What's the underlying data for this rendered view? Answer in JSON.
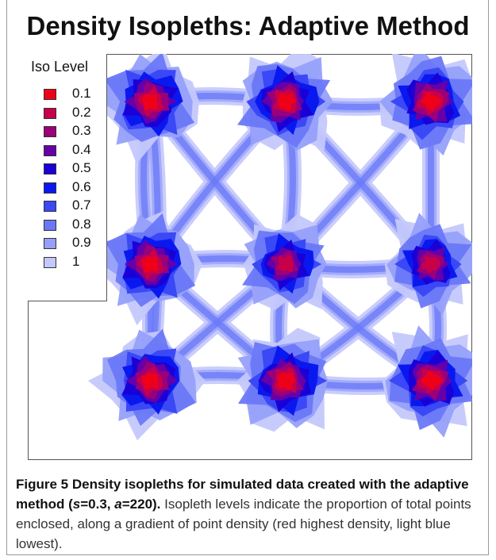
{
  "chart_data": {
    "type": "heatmap",
    "title": "Density Isopleths: Adaptive Method",
    "legend": {
      "title": "Iso Level",
      "placement": "top-left",
      "levels": [
        {
          "label": "0.1",
          "color": "#f00018"
        },
        {
          "label": "0.2",
          "color": "#c8004a"
        },
        {
          "label": "0.3",
          "color": "#99007a"
        },
        {
          "label": "0.4",
          "color": "#6600a8"
        },
        {
          "label": "0.5",
          "color": "#1a00d6"
        },
        {
          "label": "0.6",
          "color": "#0a18f0"
        },
        {
          "label": "0.7",
          "color": "#3a48f6"
        },
        {
          "label": "0.8",
          "color": "#6a78f8"
        },
        {
          "label": "0.9",
          "color": "#96a0fa"
        },
        {
          "label": "1",
          "color": "#c4c8fc"
        }
      ]
    },
    "axes_visible": false,
    "grid": false,
    "hotspots": [
      {
        "x": 1,
        "y": 3,
        "peak_level": "0.1"
      },
      {
        "x": 2,
        "y": 3,
        "peak_level": "0.1"
      },
      {
        "x": 3,
        "y": 3,
        "peak_level": "0.1"
      },
      {
        "x": 1,
        "y": 2,
        "peak_level": "0.1"
      },
      {
        "x": 2,
        "y": 2,
        "peak_level": "0.2"
      },
      {
        "x": 3,
        "y": 2,
        "peak_level": "0.2"
      },
      {
        "x": 1,
        "y": 1,
        "peak_level": "0.1"
      },
      {
        "x": 2,
        "y": 1,
        "peak_level": "0.1"
      },
      {
        "x": 3,
        "y": 1,
        "peak_level": "0.1"
      }
    ]
  },
  "caption": {
    "label": "Figure 5",
    "bold_text": "Density isopleths for simulated data created with the adaptive method (",
    "s_var": "s",
    "s_val": "=0.3, ",
    "a_var": "a",
    "a_val": "=220).",
    "body": "Isopleth levels indicate the proportion of total points enclosed, along a gradient of point density (red highest density, light blue lowest)."
  }
}
